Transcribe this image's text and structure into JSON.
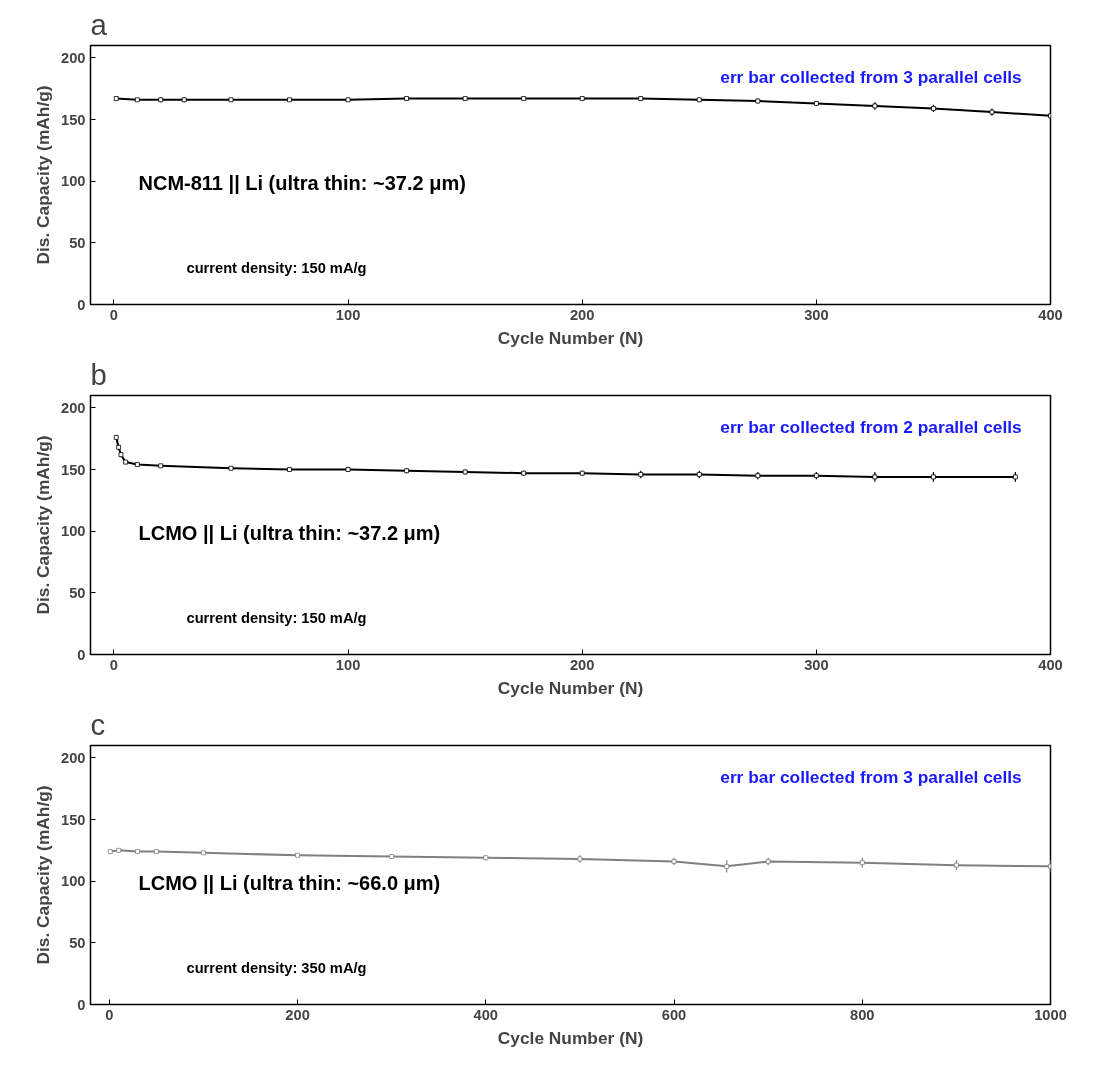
{
  "chart_data": [
    {
      "type": "line",
      "title": "a",
      "xlabel": "Cycle Number (N)",
      "ylabel": "Dis. Capacity (mAh/g)",
      "xlim": [
        -10,
        400
      ],
      "ylim": [
        0,
        210
      ],
      "xticks": [
        0,
        100,
        200,
        300,
        400
      ],
      "yticks": [
        0,
        50,
        100,
        150,
        200
      ],
      "marker": "square",
      "grid": false,
      "annotations": [
        "err bar collected from 3 parallel cells",
        "NCM-811 || Li (ultra thin: ~37.2 μm)",
        "current density: 150 mA/g"
      ],
      "series": [
        {
          "color": "#000000",
          "x": [
            1,
            10,
            20,
            30,
            50,
            75,
            100,
            125,
            150,
            175,
            200,
            225,
            250,
            275,
            300,
            325,
            350,
            375,
            400
          ],
          "values": [
            167,
            166,
            166,
            166,
            166,
            166,
            166,
            167,
            167,
            167,
            167,
            167,
            166,
            165,
            163,
            161,
            159,
            156,
            153
          ],
          "errors": [
            1,
            1,
            2,
            2,
            1,
            1,
            1,
            1,
            1,
            1,
            1,
            2,
            2,
            2,
            2,
            3,
            3,
            3,
            3
          ]
        }
      ]
    },
    {
      "type": "line",
      "title": "b",
      "xlabel": "Cycle Number (N)",
      "ylabel": "Dis. Capacity (mAh/g)",
      "xlim": [
        -10,
        400
      ],
      "ylim": [
        0,
        210
      ],
      "xticks": [
        0,
        100,
        200,
        300,
        400
      ],
      "yticks": [
        0,
        50,
        100,
        150,
        200
      ],
      "marker": "square",
      "grid": false,
      "annotations": [
        "err bar collected from 2 parallel cells",
        "LCMO || Li (ultra thin: ~37.2 μm)",
        "current density: 150 mA/g"
      ],
      "series": [
        {
          "color": "#000000",
          "x": [
            1,
            2,
            3,
            5,
            10,
            20,
            50,
            75,
            100,
            125,
            150,
            175,
            200,
            225,
            250,
            275,
            300,
            325,
            350,
            385
          ],
          "values": [
            176,
            168,
            162,
            156,
            154,
            153,
            151,
            150,
            150,
            149,
            148,
            147,
            147,
            146,
            146,
            145,
            145,
            144,
            144,
            144
          ],
          "errors": [
            2,
            2,
            2,
            1,
            1,
            1,
            1,
            1,
            2,
            2,
            2,
            2,
            2,
            3,
            3,
            3,
            3,
            4,
            4,
            4
          ]
        }
      ]
    },
    {
      "type": "line",
      "title": "c",
      "xlabel": "Cycle Number (N)",
      "ylabel": "Dis. Capacity (mAh/g)",
      "xlim": [
        -20,
        1000
      ],
      "ylim": [
        0,
        210
      ],
      "xticks": [
        0,
        200,
        400,
        600,
        800,
        1000
      ],
      "yticks": [
        0,
        50,
        100,
        150,
        200
      ],
      "marker": "square",
      "grid": false,
      "annotations": [
        "err bar collected from 3 parallel cells",
        "LCMO || Li (ultra thin: ~66.0 μm)",
        "current density: 350 mA/g"
      ],
      "series": [
        {
          "color": "#808080",
          "x": [
            1,
            10,
            30,
            50,
            100,
            200,
            300,
            400,
            500,
            600,
            656,
            700,
            800,
            900,
            1000
          ],
          "values": [
            124,
            125,
            124,
            124,
            123,
            121,
            120,
            119,
            118,
            116,
            112,
            116,
            115,
            113,
            112
          ],
          "errors": [
            1,
            1,
            1,
            1,
            1,
            1,
            2,
            2,
            3,
            3,
            5,
            3,
            4,
            4,
            5
          ]
        }
      ]
    }
  ]
}
